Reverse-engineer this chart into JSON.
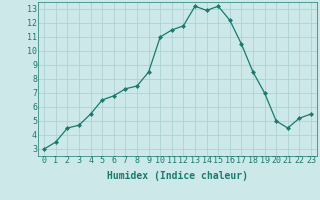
{
  "x": [
    0,
    1,
    2,
    3,
    4,
    5,
    6,
    7,
    8,
    9,
    10,
    11,
    12,
    13,
    14,
    15,
    16,
    17,
    18,
    19,
    20,
    21,
    22,
    23
  ],
  "y": [
    3.0,
    3.5,
    4.5,
    4.7,
    5.5,
    6.5,
    6.8,
    7.3,
    7.5,
    8.5,
    11.0,
    11.5,
    11.8,
    13.2,
    12.9,
    13.2,
    12.2,
    10.5,
    8.5,
    7.0,
    5.0,
    4.5,
    5.2,
    5.5
  ],
  "xlabel": "Humidex (Indice chaleur)",
  "xlim": [
    -0.5,
    23.5
  ],
  "ylim": [
    2.5,
    13.5
  ],
  "yticks": [
    3,
    4,
    5,
    6,
    7,
    8,
    9,
    10,
    11,
    12,
    13
  ],
  "xticks": [
    0,
    1,
    2,
    3,
    4,
    5,
    6,
    7,
    8,
    9,
    10,
    11,
    12,
    13,
    14,
    15,
    16,
    17,
    18,
    19,
    20,
    21,
    22,
    23
  ],
  "line_color": "#1a7a6e",
  "marker": "D",
  "marker_size": 2.0,
  "bg_color": "#cce8e8",
  "grid_color": "#aacece",
  "xlabel_fontsize": 7,
  "tick_fontsize": 6
}
